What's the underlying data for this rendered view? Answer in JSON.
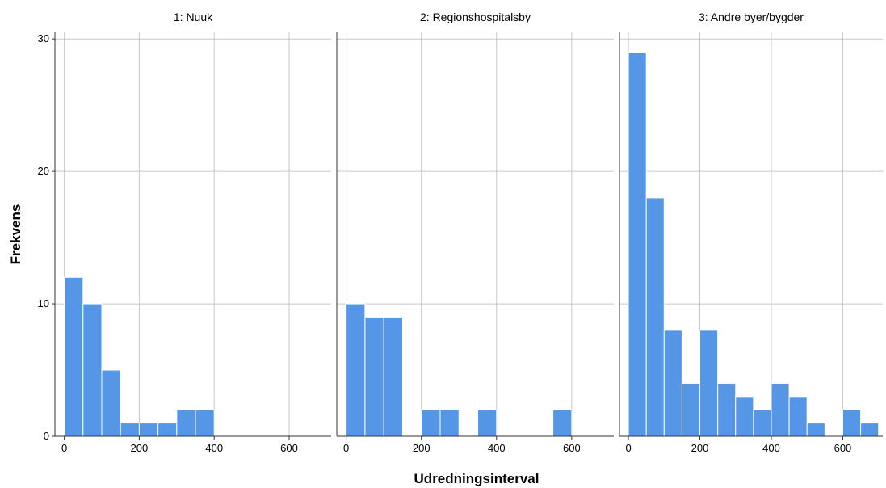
{
  "chart_data": {
    "type": "bar",
    "xlabel": "Udredningsinterval",
    "ylabel": "Frekvens",
    "xlim": [
      -25,
      712
    ],
    "ylim": [
      0,
      30.5
    ],
    "x_ticks": [
      0,
      200,
      400,
      600
    ],
    "y_ticks": [
      0,
      10,
      20,
      30
    ],
    "bin_width": 50,
    "grid": true,
    "bar_color": "#5596e6",
    "bar_edge_color": "#ffffff",
    "grid_color": "#c8c8c8",
    "panels": [
      {
        "title": "1: Nuuk",
        "bins": [
          {
            "x0": 0,
            "x1": 50,
            "count": 12
          },
          {
            "x0": 50,
            "x1": 100,
            "count": 10
          },
          {
            "x0": 100,
            "x1": 150,
            "count": 5
          },
          {
            "x0": 150,
            "x1": 200,
            "count": 1
          },
          {
            "x0": 200,
            "x1": 250,
            "count": 1
          },
          {
            "x0": 250,
            "x1": 300,
            "count": 1
          },
          {
            "x0": 300,
            "x1": 350,
            "count": 2
          },
          {
            "x0": 350,
            "x1": 400,
            "count": 2
          }
        ]
      },
      {
        "title": "2: Regionshospitalsby",
        "bins": [
          {
            "x0": 0,
            "x1": 50,
            "count": 10
          },
          {
            "x0": 50,
            "x1": 100,
            "count": 9
          },
          {
            "x0": 100,
            "x1": 150,
            "count": 9
          },
          {
            "x0": 200,
            "x1": 250,
            "count": 2
          },
          {
            "x0": 250,
            "x1": 300,
            "count": 2
          },
          {
            "x0": 350,
            "x1": 400,
            "count": 2
          },
          {
            "x0": 550,
            "x1": 600,
            "count": 2
          }
        ]
      },
      {
        "title": "3: Andre byer/bygder",
        "bins": [
          {
            "x0": 0,
            "x1": 50,
            "count": 29
          },
          {
            "x0": 50,
            "x1": 100,
            "count": 18
          },
          {
            "x0": 100,
            "x1": 150,
            "count": 8
          },
          {
            "x0": 150,
            "x1": 200,
            "count": 4
          },
          {
            "x0": 200,
            "x1": 250,
            "count": 8
          },
          {
            "x0": 250,
            "x1": 300,
            "count": 4
          },
          {
            "x0": 300,
            "x1": 350,
            "count": 3
          },
          {
            "x0": 350,
            "x1": 400,
            "count": 2
          },
          {
            "x0": 400,
            "x1": 450,
            "count": 4
          },
          {
            "x0": 450,
            "x1": 500,
            "count": 3
          },
          {
            "x0": 500,
            "x1": 550,
            "count": 1
          },
          {
            "x0": 600,
            "x1": 650,
            "count": 2
          },
          {
            "x0": 650,
            "x1": 700,
            "count": 1
          }
        ]
      }
    ]
  }
}
